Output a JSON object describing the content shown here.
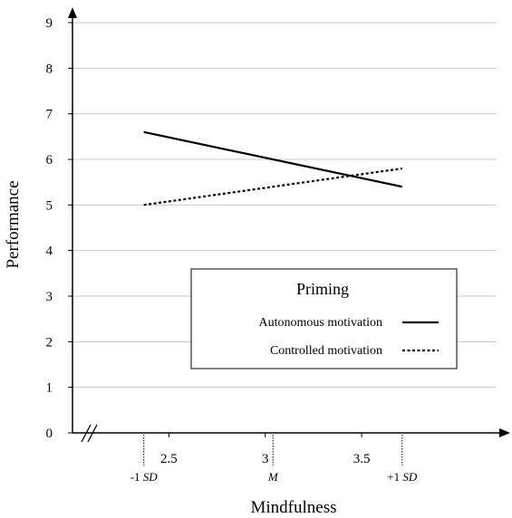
{
  "chart_data": {
    "type": "line",
    "xlabel": "Mindfulness",
    "ylabel": "Performance",
    "xlim": [
      2.0,
      4.2
    ],
    "ylim": [
      0,
      9
    ],
    "x_ticks": [
      "2.5",
      "3",
      "3.5"
    ],
    "y_ticks": [
      "0",
      "1",
      "2",
      "3",
      "4",
      "5",
      "6",
      "7",
      "8",
      "9"
    ],
    "grid": true,
    "legend": {
      "title": "Priming",
      "placement": "center-right"
    },
    "reference_marks": [
      {
        "x": 2.37,
        "label": "-1",
        "label_italic": "SD"
      },
      {
        "x": 3.04,
        "label": "",
        "label_italic": "M"
      },
      {
        "x": 3.71,
        "label": "+1",
        "label_italic": "SD"
      }
    ],
    "series": [
      {
        "name": "Autonomous motivation",
        "style": "solid",
        "x": [
          2.37,
          3.71
        ],
        "y": [
          6.6,
          5.4
        ]
      },
      {
        "name": "Controlled motivation",
        "style": "dotted",
        "x": [
          2.37,
          3.71
        ],
        "y": [
          5.0,
          5.8
        ]
      }
    ]
  }
}
